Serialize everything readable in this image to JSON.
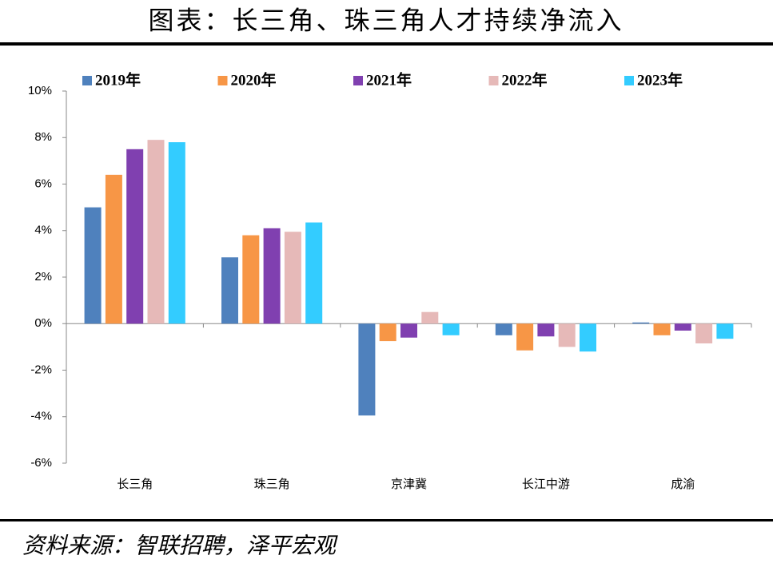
{
  "chart_data": {
    "type": "bar",
    "title": "图表：长三角、珠三角人才持续净流入",
    "source": "资料来源：智联招聘，泽平宏观",
    "categories": [
      "长三角",
      "珠三角",
      "京津冀",
      "长江中游",
      "成渝"
    ],
    "series": [
      {
        "name": "2019年",
        "color": "#4f81bd",
        "values": [
          5.0,
          2.85,
          -3.95,
          -0.5,
          0.05
        ]
      },
      {
        "name": "2020年",
        "color": "#f79646",
        "values": [
          6.4,
          3.8,
          -0.75,
          -1.15,
          -0.5
        ]
      },
      {
        "name": "2021年",
        "color": "#8040b0",
        "values": [
          7.5,
          4.1,
          -0.6,
          -0.55,
          -0.3
        ]
      },
      {
        "name": "2022年",
        "color": "#e6b9b8",
        "values": [
          7.9,
          3.95,
          0.5,
          -1.0,
          -0.85
        ]
      },
      {
        "name": "2023年",
        "color": "#33ccff",
        "values": [
          7.8,
          4.35,
          -0.5,
          -1.2,
          -0.65
        ]
      }
    ],
    "ylim": [
      -6,
      10
    ],
    "yticks": [
      {
        "value": -6,
        "label": "-6%"
      },
      {
        "value": -4,
        "label": "-4%"
      },
      {
        "value": -2,
        "label": "-2%"
      },
      {
        "value": 0,
        "label": "0%"
      },
      {
        "value": 2,
        "label": "2%"
      },
      {
        "value": 4,
        "label": "4%"
      },
      {
        "value": 6,
        "label": "6%"
      },
      {
        "value": 8,
        "label": "8%"
      },
      {
        "value": 10,
        "label": "10%"
      }
    ],
    "legend": "top"
  }
}
